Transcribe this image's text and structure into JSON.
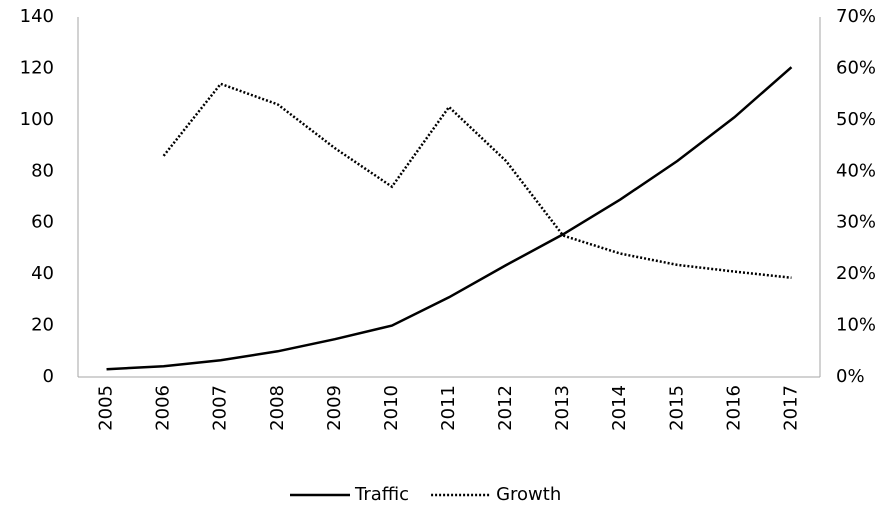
{
  "chart_data": {
    "type": "line",
    "categories": [
      "2005",
      "2006",
      "2007",
      "2008",
      "2009",
      "2010",
      "2011",
      "2012",
      "2013",
      "2014",
      "2015",
      "2016",
      "2017"
    ],
    "series": [
      {
        "name": "Traffic",
        "color": "#000000",
        "style": "solid",
        "values": [
          3,
          4.2,
          6.5,
          10,
          14.7,
          20,
          31,
          43.5,
          55.5,
          69,
          84,
          101,
          120.5
        ]
      },
      {
        "name": "Growth",
        "color": "#000000",
        "style": "dotted",
        "axis": "y2",
        "values": [
          null,
          43,
          57,
          53,
          44.5,
          37,
          52.5,
          42,
          27.5,
          24,
          21.8,
          20.5,
          19.3
        ]
      }
    ],
    "ylim": [
      0,
      140
    ],
    "yticks": [
      0,
      20,
      40,
      60,
      80,
      100,
      120,
      140
    ],
    "y2lim": [
      0,
      70
    ],
    "y2ticks": [
      {
        "value": 0,
        "label": "0%"
      },
      {
        "value": 10,
        "label": "10%"
      },
      {
        "value": 20,
        "label": "20%"
      },
      {
        "value": 30,
        "label": "30%"
      },
      {
        "value": 40,
        "label": "40%"
      },
      {
        "value": 50,
        "label": "50%"
      },
      {
        "value": 60,
        "label": "60%"
      },
      {
        "value": 70,
        "label": "70%"
      }
    ],
    "legend": "bottom"
  }
}
